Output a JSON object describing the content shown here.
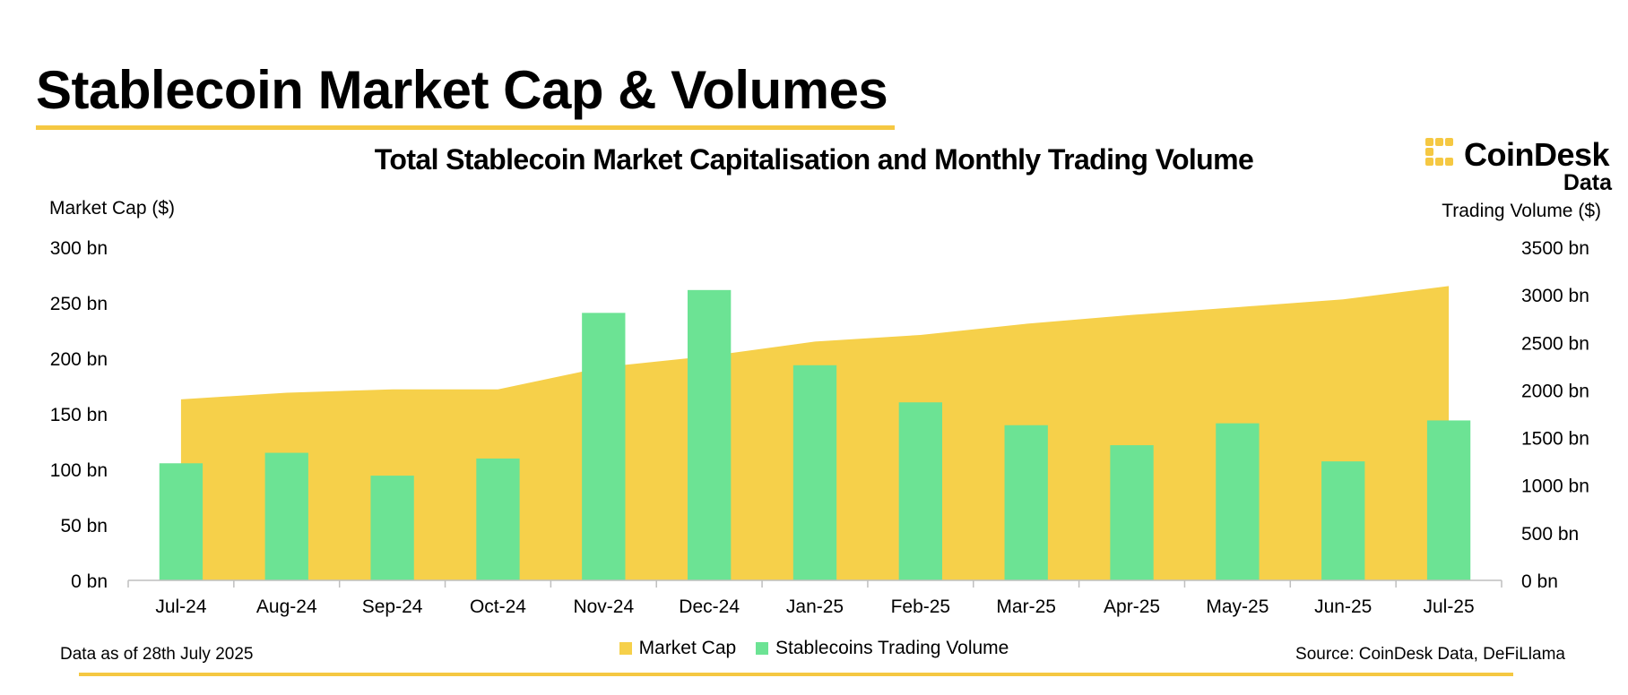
{
  "header": {
    "title": "Stablecoin Market Cap & Volumes",
    "chart_title": "Total Stablecoin Market Capitalisation and Monthly Trading Volume"
  },
  "logo": {
    "name": "CoinDesk",
    "sub": "Data"
  },
  "colors": {
    "accent": "#F5C842",
    "market_cap": "#F6D04A",
    "volume": "#6CE394",
    "axis": "#bfbfbf"
  },
  "footer": {
    "note": "Data as of 28th July 2025",
    "source": "Source: CoinDesk Data, DeFiLlama"
  },
  "chart_data": {
    "type": "bar",
    "title": "Total Stablecoin Market Capitalisation and Monthly Trading Volume",
    "categories": [
      "Jul-24",
      "Aug-24",
      "Sep-24",
      "Oct-24",
      "Nov-24",
      "Dec-24",
      "Jan-25",
      "Feb-25",
      "Mar-25",
      "Apr-25",
      "May-25",
      "Jun-25",
      "Jul-25"
    ],
    "series": [
      {
        "name": "Market Cap",
        "type": "area",
        "axis": "left",
        "values": [
          163,
          169,
          172,
          172,
          192,
          202,
          215,
          221,
          231,
          239,
          246,
          253,
          265
        ]
      },
      {
        "name": "Stablecoins Trading Volume",
        "type": "bar",
        "axis": "right",
        "values": [
          1230,
          1340,
          1100,
          1280,
          2810,
          3050,
          2260,
          1870,
          1630,
          1420,
          1650,
          1250,
          1680
        ]
      }
    ],
    "ylabel": "Market Cap ($)",
    "ylabel_right": "Trading Volume ($)",
    "ylim": [
      0,
      300
    ],
    "ylim_right": [
      0,
      3500
    ],
    "yticks": [
      "0 bn",
      "50 bn",
      "100 bn",
      "150 bn",
      "200 bn",
      "250 bn",
      "300 bn"
    ],
    "yticks_right": [
      "0 bn",
      "500 bn",
      "1000 bn",
      "1500 bn",
      "2000 bn",
      "2500 bn",
      "3000 bn",
      "3500 bn"
    ],
    "grid": false,
    "legend": "bottom"
  }
}
